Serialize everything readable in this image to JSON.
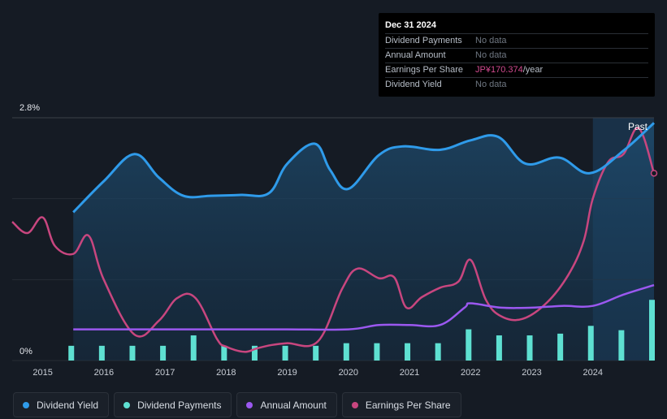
{
  "tooltip": {
    "date": "Dec 31 2024",
    "rows": [
      {
        "label": "Dividend Payments",
        "value": "No data"
      },
      {
        "label": "Annual Amount",
        "value": "No data"
      },
      {
        "label": "Earnings Per Share",
        "value_main": "JP¥170.374",
        "value_unit": "/year"
      },
      {
        "label": "Dividend Yield",
        "value": "No data"
      }
    ]
  },
  "legend": [
    {
      "label": "Dividend Yield",
      "color": "#2f9bea"
    },
    {
      "label": "Dividend Payments",
      "color": "#5ee0d2"
    },
    {
      "label": "Annual Amount",
      "color": "#9b58f0"
    },
    {
      "label": "Earnings Per Share",
      "color": "#c8467f"
    }
  ],
  "chart_data": {
    "type": "line",
    "title": "",
    "past_label": "Past",
    "ylabels": {
      "top": "2.8%",
      "bottom": "0%"
    },
    "ylim": [
      0,
      2.8
    ],
    "xlim": [
      2014.5,
      2025.0
    ],
    "xticks": [
      "2015",
      "2016",
      "2017",
      "2018",
      "2019",
      "2020",
      "2021",
      "2022",
      "2023",
      "2024"
    ],
    "future_from": 2024.0,
    "series": [
      {
        "name": "Dividend Yield",
        "color": "#2f9bea",
        "unit": "%",
        "x": [
          2015.5,
          2016.0,
          2016.5,
          2016.9,
          2017.3,
          2017.75,
          2018.25,
          2018.7,
          2019.0,
          2019.45,
          2019.7,
          2020.0,
          2020.5,
          2020.9,
          2021.5,
          2022.0,
          2022.45,
          2022.9,
          2023.45,
          2023.95,
          2024.5,
          2025.0
        ],
        "values": [
          1.71,
          2.07,
          2.38,
          2.11,
          1.9,
          1.9,
          1.91,
          1.93,
          2.27,
          2.5,
          2.2,
          1.98,
          2.37,
          2.47,
          2.43,
          2.54,
          2.58,
          2.27,
          2.34,
          2.16,
          2.42,
          2.74
        ]
      },
      {
        "name": "Earnings Per Share",
        "color": "#c8467f",
        "relative_scale": true,
        "x": [
          2014.5,
          2014.75,
          2015.0,
          2015.2,
          2015.5,
          2015.75,
          2016.0,
          2016.5,
          2016.9,
          2017.2,
          2017.5,
          2017.85,
          2018.0,
          2018.3,
          2018.5,
          2018.75,
          2019.0,
          2019.5,
          2019.9,
          2020.15,
          2020.5,
          2020.75,
          2020.95,
          2021.2,
          2021.5,
          2021.8,
          2022.0,
          2022.25,
          2022.5,
          2022.85,
          2023.25,
          2023.6,
          2023.85,
          2024.0,
          2024.25,
          2024.5,
          2024.75,
          2025.0
        ],
        "values": [
          1.6,
          1.47,
          1.65,
          1.32,
          1.23,
          1.44,
          0.93,
          0.3,
          0.46,
          0.72,
          0.72,
          0.25,
          0.16,
          0.1,
          0.14,
          0.18,
          0.2,
          0.22,
          0.83,
          1.06,
          0.95,
          0.96,
          0.61,
          0.73,
          0.84,
          0.91,
          1.16,
          0.7,
          0.51,
          0.48,
          0.67,
          0.99,
          1.38,
          1.87,
          2.29,
          2.38,
          2.68,
          2.16
        ]
      },
      {
        "name": "Annual Amount",
        "color": "#9b58f0",
        "relative_scale": true,
        "x": [
          2015.5,
          2016.0,
          2017.0,
          2018.0,
          2019.0,
          2020.0,
          2020.5,
          2021.0,
          2021.5,
          2021.9,
          2022.0,
          2022.5,
          2023.0,
          2023.5,
          2024.0,
          2024.5,
          2025.0
        ],
        "values": [
          0.36,
          0.36,
          0.36,
          0.36,
          0.36,
          0.36,
          0.41,
          0.41,
          0.41,
          0.61,
          0.66,
          0.61,
          0.61,
          0.63,
          0.63,
          0.76,
          0.87
        ]
      },
      {
        "name": "Dividend Payments",
        "color": "#5ee0d2",
        "type": "bar",
        "relative_scale": true,
        "x": [
          2015.5,
          2016.0,
          2016.5,
          2017.0,
          2017.5,
          2018.0,
          2018.5,
          2019.0,
          2019.5,
          2020.0,
          2020.5,
          2021.0,
          2021.5,
          2022.0,
          2022.5,
          2023.0,
          2023.5,
          2024.0,
          2024.5,
          2025.0
        ],
        "values": [
          0.17,
          0.17,
          0.17,
          0.17,
          0.29,
          0.17,
          0.17,
          0.17,
          0.17,
          0.2,
          0.2,
          0.2,
          0.2,
          0.36,
          0.29,
          0.29,
          0.31,
          0.4,
          0.35,
          0.7
        ]
      }
    ]
  }
}
